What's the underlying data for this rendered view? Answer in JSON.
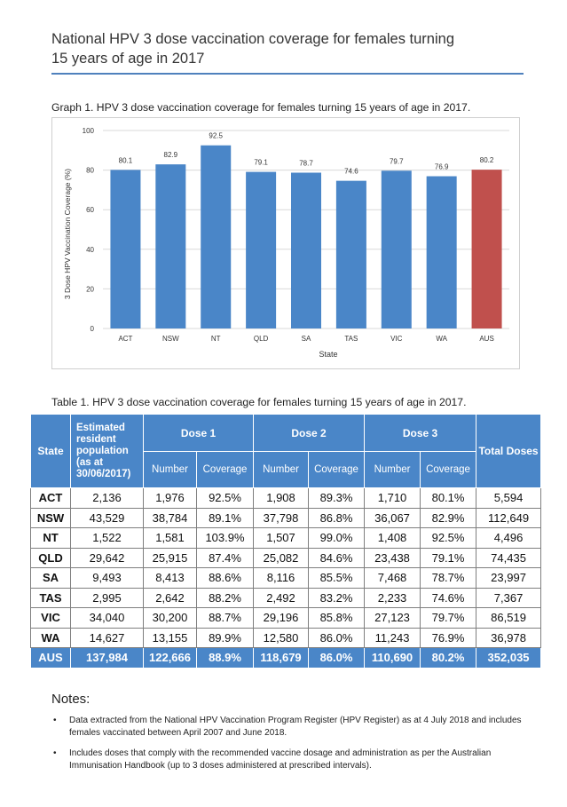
{
  "title": {
    "line1": "National HPV 3 dose vaccination coverage for females turning",
    "line2": "15 years of age in 2017"
  },
  "graph_caption": "Graph 1. HPV 3 dose vaccination coverage for females turning 15 years of age in 2017.",
  "chart_data": {
    "type": "bar",
    "categories": [
      "ACT",
      "NSW",
      "NT",
      "QLD",
      "SA",
      "TAS",
      "VIC",
      "WA",
      "AUS"
    ],
    "values": [
      80.1,
      82.9,
      92.5,
      79.1,
      78.7,
      74.6,
      79.7,
      76.9,
      80.2
    ],
    "value_labels": [
      "80.1",
      "82.9",
      "92.5",
      "79.1",
      "78.7",
      "74.6",
      "79.7",
      "76.9",
      "80.2"
    ],
    "xlabel": "State",
    "ylabel": "3 Dose HPV Vaccination Coverage (%)",
    "ylim": [
      0,
      100
    ],
    "yticks": [
      "0",
      "20",
      "40",
      "60",
      "80",
      "100"
    ],
    "colors": {
      "bar": "#4a86c8",
      "highlight": "#c0504d"
    },
    "highlight_category": "AUS"
  },
  "table_caption": "Table 1. HPV 3 dose vaccination coverage for females turning 15 years of age in 2017.",
  "table": {
    "headers": {
      "state": "State",
      "population_lines": [
        "Estimated",
        "resident",
        "population",
        "(as at",
        "30/06/2017)"
      ],
      "dose1": "Dose 1",
      "dose2": "Dose 2",
      "dose3": "Dose 3",
      "total": "Total Doses",
      "number": "Number",
      "coverage": "Coverage"
    },
    "rows": [
      [
        "ACT",
        "2,136",
        "1,976",
        "92.5%",
        "1,908",
        "89.3%",
        "1,710",
        "80.1%",
        "5,594"
      ],
      [
        "NSW",
        "43,529",
        "38,784",
        "89.1%",
        "37,798",
        "86.8%",
        "36,067",
        "82.9%",
        "112,649"
      ],
      [
        "NT",
        "1,522",
        "1,581",
        "103.9%",
        "1,507",
        "99.0%",
        "1,408",
        "92.5%",
        "4,496"
      ],
      [
        "QLD",
        "29,642",
        "25,915",
        "87.4%",
        "25,082",
        "84.6%",
        "23,438",
        "79.1%",
        "74,435"
      ],
      [
        "SA",
        "9,493",
        "8,413",
        "88.6%",
        "8,116",
        "85.5%",
        "7,468",
        "78.7%",
        "23,997"
      ],
      [
        "TAS",
        "2,995",
        "2,642",
        "88.2%",
        "2,492",
        "83.2%",
        "2,233",
        "74.6%",
        "7,367"
      ],
      [
        "VIC",
        "34,040",
        "30,200",
        "88.7%",
        "29,196",
        "85.8%",
        "27,123",
        "79.7%",
        "86,519"
      ],
      [
        "WA",
        "14,627",
        "13,155",
        "89.9%",
        "12,580",
        "86.0%",
        "11,243",
        "76.9%",
        "36,978"
      ]
    ],
    "total_row": [
      "AUS",
      "137,984",
      "122,666",
      "88.9%",
      "118,679",
      "86.0%",
      "110,690",
      "80.2%",
      "352,035"
    ]
  },
  "notes": {
    "title": "Notes:",
    "items": [
      "Data extracted from the National HPV Vaccination Program Register (HPV Register) as at 4 July 2018 and includes females vaccinated between April 2007 and June 2018.",
      "Includes doses that comply with the recommended vaccine dosage and administration as per the Australian Immunisation Handbook (up to 3 doses administered at prescribed intervals)."
    ],
    "bullet": "•"
  }
}
